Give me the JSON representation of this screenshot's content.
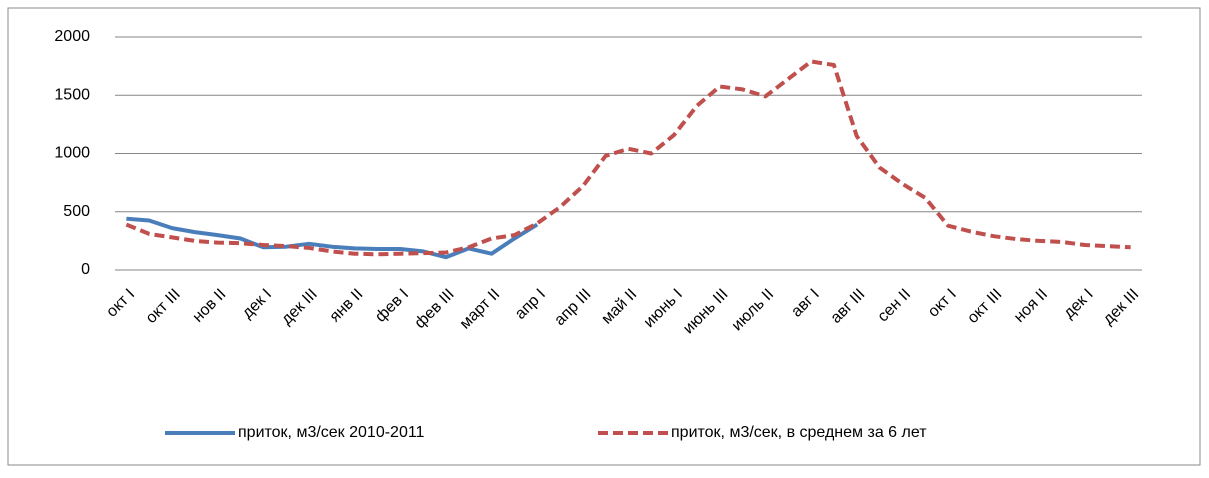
{
  "chart_data": {
    "type": "line",
    "categories": [
      "окт I",
      null,
      "окт III",
      null,
      "нов II",
      null,
      "дек I",
      null,
      "дек III",
      null,
      "янв II",
      null,
      "фев I",
      null,
      "фев III",
      null,
      "март II",
      null,
      "апр I",
      null,
      "апр III",
      null,
      "май II",
      null,
      "июнь I",
      null,
      "июнь III",
      null,
      "июль II",
      null,
      "авг I",
      null,
      "авг III",
      null,
      "сен II",
      null,
      "окт I",
      null,
      "окт III",
      null,
      "ноя II",
      null,
      "дек I",
      null,
      "дек III"
    ],
    "series": [
      {
        "name": "приток, м3/сек 2010-2011",
        "color": "#4a7ebb",
        "dash": false,
        "values": [
          440,
          425,
          360,
          325,
          300,
          270,
          195,
          200,
          225,
          200,
          185,
          180,
          180,
          160,
          110,
          185,
          140,
          270,
          390,
          null,
          null,
          null,
          null,
          null,
          null,
          null,
          null,
          null,
          null,
          null,
          null,
          null,
          null,
          null,
          null,
          null,
          null,
          null,
          null,
          null,
          null,
          null,
          null,
          null,
          null
        ]
      },
      {
        "name": "приток, м3/сек, в среднем за 6 лет",
        "color": "#c0504d",
        "dash": true,
        "values": [
          390,
          310,
          280,
          250,
          235,
          230,
          215,
          205,
          190,
          160,
          140,
          135,
          140,
          145,
          150,
          195,
          270,
          300,
          400,
          540,
          720,
          980,
          1040,
          1000,
          1160,
          1410,
          1575,
          1550,
          1490,
          1640,
          1790,
          1760,
          1150,
          880,
          740,
          620,
          380,
          330,
          290,
          265,
          250,
          240,
          215,
          205,
          195
        ]
      }
    ],
    "ylim": [
      0,
      2000
    ],
    "yticks": [
      0,
      500,
      1000,
      1500,
      2000
    ],
    "grid": true,
    "legend": "bottom"
  }
}
